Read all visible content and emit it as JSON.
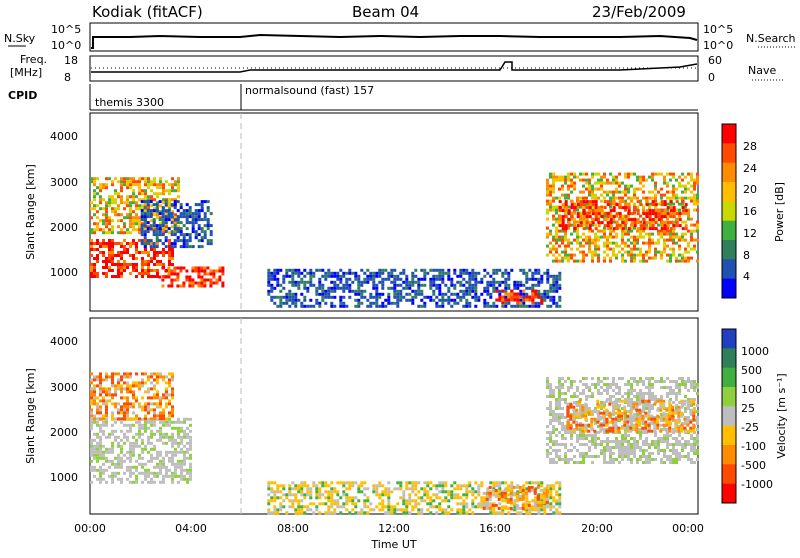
{
  "header": {
    "station": "Kodiak (fitACF)",
    "beam": "Beam 04",
    "date": "23/Feb/2009"
  },
  "strips": {
    "nsky_label": "N.Sky",
    "nsky_ticks": [
      "10^5",
      "10^0"
    ],
    "nsearch_label": "N.Search",
    "nsearch_ticks": [
      "10^5",
      "10^0"
    ],
    "freq_label_1": "Freq.",
    "freq_label_2": "[MHz]",
    "freq_ticks": [
      "18",
      "8"
    ],
    "nave_label": "Nave",
    "nave_ticks": [
      "60",
      "0"
    ],
    "cpid_label": "CPID",
    "cpid_segments": [
      {
        "name": "themis 3300",
        "start_hour": 0,
        "end_hour": 6
      },
      {
        "name": "normalsound (fast) 157",
        "start_hour": 6,
        "end_hour": 24
      }
    ]
  },
  "axes": {
    "ylabel": "Slant Range [km]",
    "yticks": [
      "1000",
      "2000",
      "3000",
      "4000"
    ],
    "xlabel": "Time UT",
    "xticks": [
      "00:00",
      "04:00",
      "08:00",
      "12:00",
      "16:00",
      "20:00",
      "00:00"
    ]
  },
  "colorbars": {
    "power": {
      "label": "Power [dB]",
      "ticks": [
        "28",
        "24",
        "20",
        "16",
        "12",
        "8",
        "4"
      ],
      "colors": [
        "#ff0000",
        "#ff4a00",
        "#ff8c00",
        "#ffbe00",
        "#c8d800",
        "#3fb03f",
        "#2f7f5a",
        "#2050b0",
        "#0000ff"
      ]
    },
    "velocity": {
      "label": "Velocity [m s⁻¹]",
      "ticks": [
        "1000",
        "500",
        "100",
        "25",
        "-25",
        "-100",
        "-500",
        "-1000"
      ],
      "colors": [
        "#2040c0",
        "#2f7f5a",
        "#3fb03f",
        "#90d040",
        "#bebebe",
        "#ffbe00",
        "#ff8c00",
        "#ff4a00",
        "#ff0000"
      ]
    }
  },
  "chart_data": {
    "type": "heatmap",
    "x_unit": "hours UT",
    "xlim": [
      0,
      24
    ],
    "ylim": [
      180,
      4500
    ],
    "power_regions": [
      {
        "t0": 0.0,
        "t1": 3.2,
        "r0": 900,
        "r1": 1750,
        "level": "high"
      },
      {
        "t0": 2.7,
        "t1": 5.2,
        "r0": 750,
        "r1": 1150,
        "level": "high"
      },
      {
        "t0": 0.0,
        "t1": 3.5,
        "r0": 1900,
        "r1": 3100,
        "level": "mid"
      },
      {
        "t0": 2.0,
        "t1": 4.8,
        "r0": 1600,
        "r1": 2600,
        "level": "low"
      },
      {
        "t0": 7.0,
        "t1": 18.5,
        "r0": 250,
        "r1": 1100,
        "level": "low"
      },
      {
        "t0": 16.0,
        "t1": 17.8,
        "r0": 350,
        "r1": 650,
        "level": "high"
      },
      {
        "t0": 18.0,
        "t1": 24.0,
        "r0": 1300,
        "r1": 3200,
        "level": "mid"
      },
      {
        "t0": 18.5,
        "t1": 23.5,
        "r0": 2000,
        "r1": 2600,
        "level": "high"
      }
    ],
    "velocity_regions": [
      {
        "t0": 0.0,
        "t1": 4.0,
        "r0": 900,
        "r1": 2300,
        "level": "zero"
      },
      {
        "t0": 0.0,
        "t1": 3.3,
        "r0": 2300,
        "r1": 3300,
        "level": "neg"
      },
      {
        "t0": 7.0,
        "t1": 18.5,
        "r0": 180,
        "r1": 900,
        "level": "negsmall"
      },
      {
        "t0": 15.5,
        "t1": 18.0,
        "r0": 300,
        "r1": 800,
        "level": "neg"
      },
      {
        "t0": 18.0,
        "t1": 24.0,
        "r0": 1300,
        "r1": 3200,
        "level": "zero"
      },
      {
        "t0": 18.8,
        "t1": 23.8,
        "r0": 2000,
        "r1": 2700,
        "level": "neg"
      }
    ]
  }
}
